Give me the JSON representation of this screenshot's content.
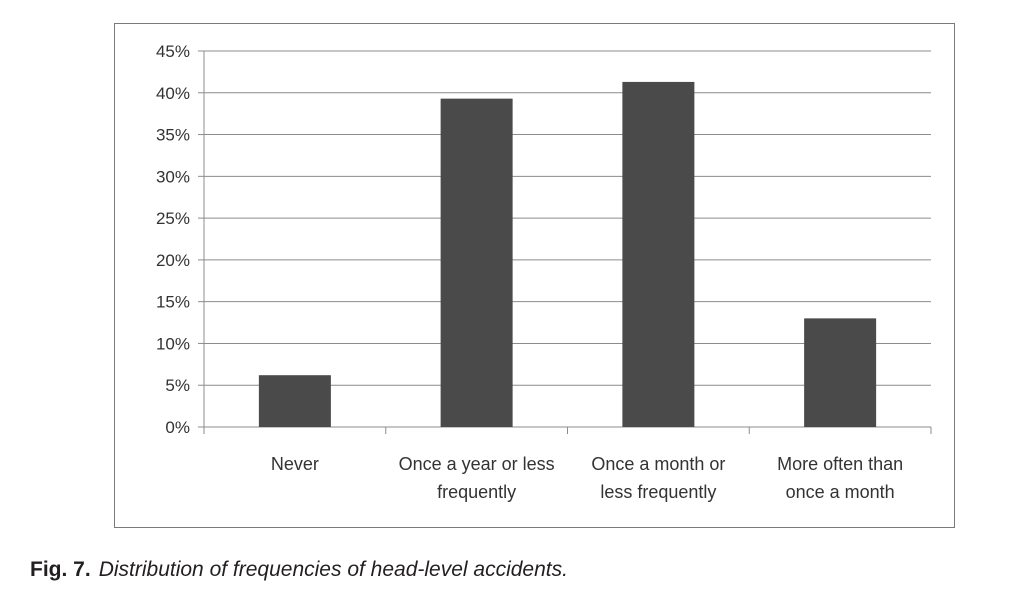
{
  "chart_data": {
    "type": "bar",
    "categories": [
      [
        "Never"
      ],
      [
        "Once a year or less",
        "frequently"
      ],
      [
        "Once a month or",
        "less frequently"
      ],
      [
        "More often than",
        "once a month"
      ]
    ],
    "values": [
      6.2,
      39.3,
      41.3,
      13.0
    ],
    "ylim": [
      0,
      45
    ],
    "yticks": [
      "0%",
      "5%",
      "10%",
      "15%",
      "20%",
      "25%",
      "30%",
      "35%",
      "40%",
      "45%"
    ],
    "ytick_values": [
      0,
      5,
      10,
      15,
      20,
      25,
      30,
      35,
      40,
      45
    ],
    "grid": true,
    "bar_color": "#4a4a4a",
    "grid_color": "#8c8c8c"
  },
  "caption": {
    "label": "Fig. 7.",
    "text": "Distribution of frequencies of head-level accidents."
  }
}
